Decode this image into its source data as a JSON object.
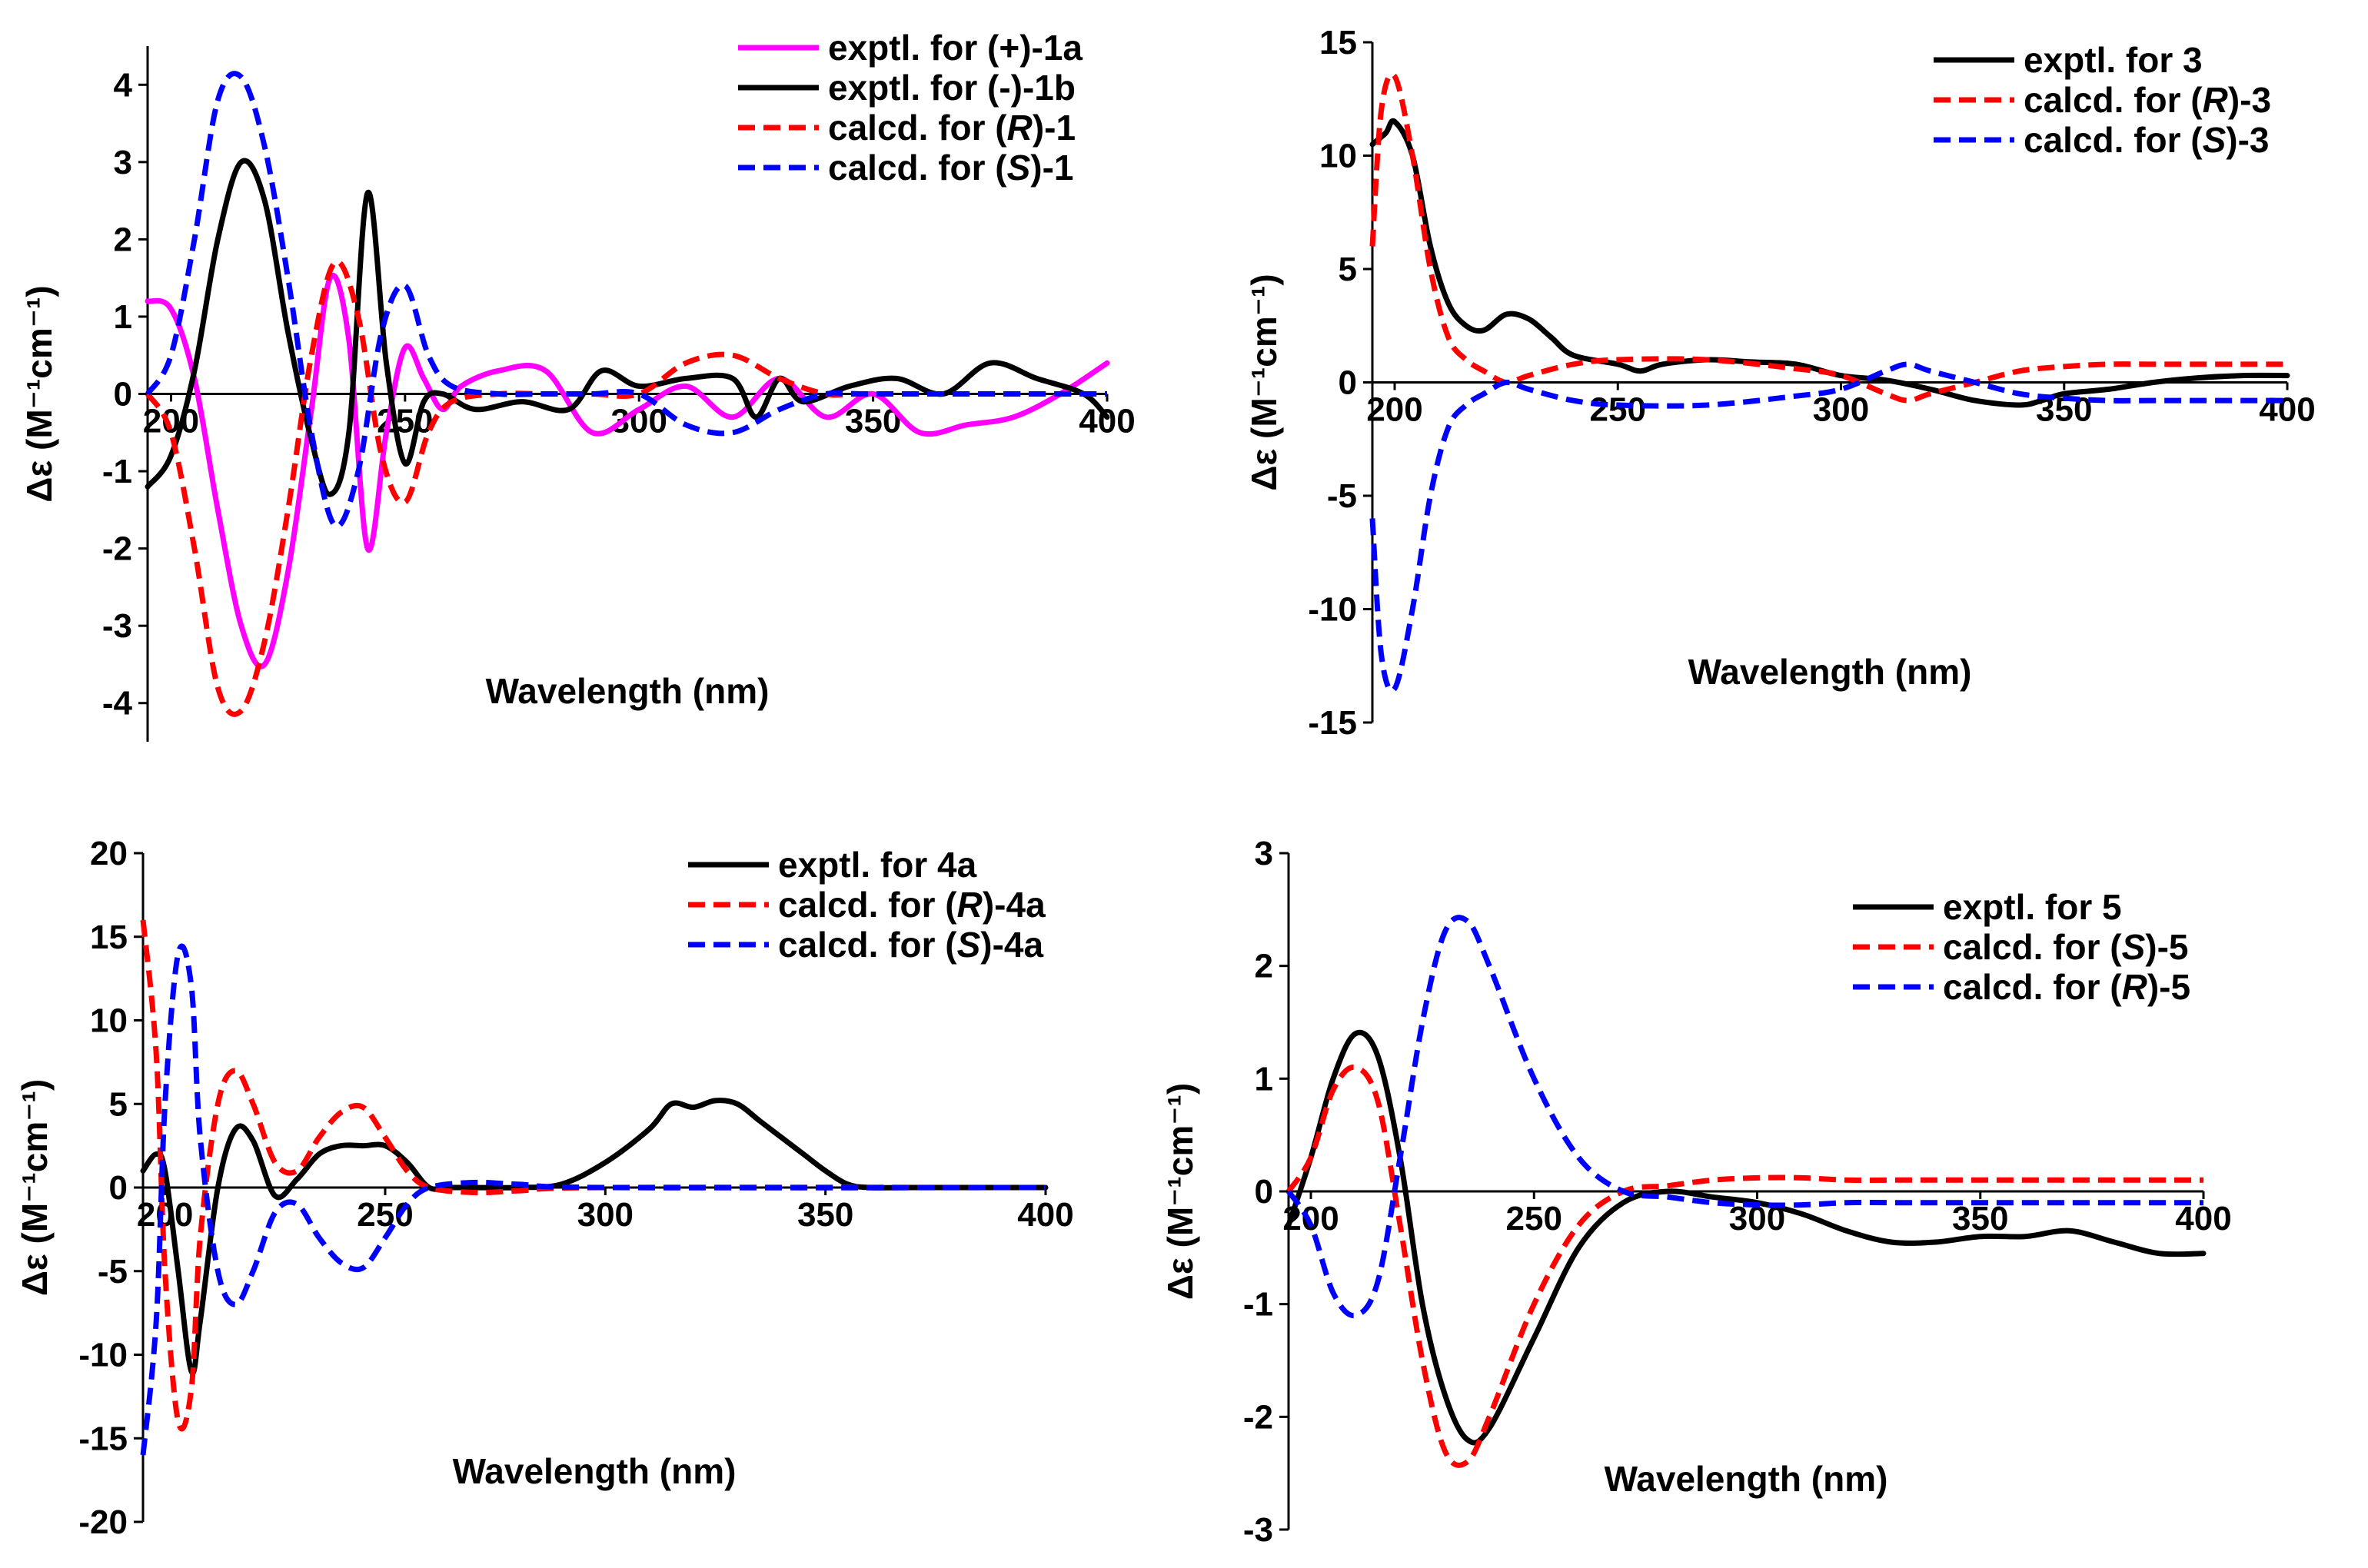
{
  "chart_data": [
    {
      "type": "line",
      "panel": "top-left",
      "xlabel": "Wavelength (nm)",
      "ylabel": "Δε (M⁻¹cm⁻¹)",
      "xlim": [
        195,
        400
      ],
      "ylim": [
        -4.5,
        4.5
      ],
      "xticks": [
        200,
        250,
        300,
        350,
        400
      ],
      "yticks": [
        -4,
        -3,
        -2,
        -1,
        0,
        1,
        2,
        3,
        4
      ],
      "legend_position": "top-right",
      "series": [
        {
          "name": "exptl. for (+)-1a",
          "name_pre": "exptl. for (+)-1a",
          "name_it": "",
          "name_post": "",
          "color": "#ff00ff",
          "dash": "solid",
          "x": [
            195,
            200,
            205,
            210,
            215,
            220,
            225,
            230,
            234,
            238,
            242,
            246,
            250,
            254,
            258,
            262,
            270,
            280,
            290,
            300,
            310,
            320,
            330,
            340,
            350,
            360,
            370,
            380,
            390,
            400
          ],
          "y": [
            1.2,
            1.1,
            0.2,
            -1.5,
            -3.0,
            -3.5,
            -2.3,
            -0.2,
            1.5,
            0.7,
            -2.0,
            -0.5,
            0.6,
            0.2,
            -0.2,
            0.1,
            0.3,
            0.3,
            -0.5,
            -0.2,
            0.1,
            -0.3,
            0.2,
            -0.3,
            0.0,
            -0.5,
            -0.4,
            -0.3,
            0.0,
            0.4
          ]
        },
        {
          "name": "exptl. for (-)-1b",
          "name_pre": "exptl. for (-)-1b",
          "name_it": "",
          "name_post": "",
          "color": "#000000",
          "dash": "solid",
          "x": [
            195,
            200,
            205,
            210,
            215,
            220,
            225,
            230,
            234,
            238,
            242,
            246,
            250,
            254,
            258,
            265,
            275,
            285,
            292,
            300,
            310,
            320,
            325,
            330,
            335,
            345,
            355,
            365,
            375,
            385,
            395,
            400
          ],
          "y": [
            -1.2,
            -0.8,
            0.3,
            2.0,
            3.0,
            2.5,
            0.8,
            -0.6,
            -1.3,
            -0.5,
            2.6,
            0.4,
            -0.9,
            -0.1,
            0.0,
            -0.2,
            -0.1,
            -0.2,
            0.3,
            0.1,
            0.2,
            0.2,
            -0.3,
            0.2,
            -0.1,
            0.1,
            0.2,
            0.0,
            0.4,
            0.2,
            0.0,
            -0.3
          ]
        },
        {
          "name": "calcd. for (R)-1",
          "name_pre": "calcd. for (",
          "name_it": "R",
          "name_post": ")-1",
          "color": "#ff0000",
          "dash": "dashed",
          "x": [
            195,
            200,
            205,
            210,
            215,
            220,
            225,
            230,
            235,
            240,
            245,
            250,
            255,
            260,
            270,
            280,
            290,
            300,
            310,
            320,
            330,
            340,
            350,
            400
          ],
          "y": [
            0.0,
            -0.5,
            -2.0,
            -3.8,
            -4.1,
            -3.2,
            -1.5,
            0.5,
            1.7,
            1.0,
            -0.8,
            -1.4,
            -0.5,
            -0.1,
            0.0,
            0.0,
            0.0,
            0.0,
            0.4,
            0.5,
            0.2,
            0.0,
            0.0,
            0.0
          ]
        },
        {
          "name": "calcd. for (S)-1",
          "name_pre": "calcd. for (",
          "name_it": "S",
          "name_post": ")-1",
          "color": "#0000ff",
          "dash": "dashed",
          "x": [
            195,
            200,
            205,
            210,
            215,
            220,
            225,
            230,
            235,
            240,
            245,
            250,
            255,
            260,
            270,
            280,
            290,
            300,
            310,
            320,
            330,
            340,
            350,
            400
          ],
          "y": [
            0.0,
            0.5,
            2.0,
            3.8,
            4.1,
            3.2,
            1.5,
            -0.5,
            -1.7,
            -1.0,
            0.8,
            1.4,
            0.5,
            0.1,
            0.0,
            0.0,
            0.0,
            0.0,
            -0.4,
            -0.5,
            -0.2,
            0.0,
            0.0,
            0.0
          ]
        }
      ]
    },
    {
      "type": "line",
      "panel": "top-right",
      "xlabel": "Wavelength (nm)",
      "ylabel": "Δε (M⁻¹cm⁻¹)",
      "xlim": [
        195,
        400
      ],
      "ylim": [
        -15,
        15
      ],
      "xticks": [
        200,
        250,
        300,
        350,
        400
      ],
      "yticks": [
        -15,
        -10,
        -5,
        0,
        5,
        10,
        15
      ],
      "legend_position": "top-right",
      "series": [
        {
          "name": "exptl. for 3",
          "name_pre": "exptl. for 3",
          "name_it": "",
          "name_post": "",
          "color": "#000000",
          "dash": "solid",
          "x": [
            195,
            198,
            200,
            204,
            208,
            212,
            216,
            220,
            225,
            230,
            235,
            240,
            250,
            255,
            260,
            270,
            280,
            290,
            300,
            310,
            320,
            330,
            340,
            345,
            350,
            360,
            370,
            380,
            390,
            400
          ],
          "y": [
            10.5,
            11.0,
            11.5,
            10.0,
            6.0,
            3.5,
            2.5,
            2.3,
            3.0,
            2.8,
            2.0,
            1.2,
            0.8,
            0.5,
            0.8,
            1.0,
            0.9,
            0.8,
            0.3,
            0.1,
            -0.3,
            -0.8,
            -1.0,
            -0.8,
            -0.5,
            -0.3,
            0.0,
            0.2,
            0.3,
            0.3
          ]
        },
        {
          "name": "calcd. for (R)-3",
          "name_pre": "calcd. for (",
          "name_it": "R",
          "name_post": ")-3",
          "color": "#ff0000",
          "dash": "dashed",
          "x": [
            195,
            197,
            200,
            204,
            208,
            212,
            216,
            220,
            225,
            230,
            240,
            250,
            270,
            290,
            300,
            310,
            315,
            320,
            330,
            340,
            350,
            360,
            370,
            380,
            400
          ],
          "y": [
            6.0,
            12.0,
            13.5,
            10.0,
            5.0,
            2.0,
            1.0,
            0.5,
            0.0,
            0.3,
            0.8,
            1.0,
            1.0,
            0.6,
            0.3,
            -0.5,
            -0.8,
            -0.5,
            0.0,
            0.5,
            0.7,
            0.8,
            0.8,
            0.8,
            0.8
          ]
        },
        {
          "name": "calcd. for (S)-3",
          "name_pre": "calcd. for (",
          "name_it": "S",
          "name_post": ")-3",
          "color": "#0000ff",
          "dash": "dashed",
          "x": [
            195,
            197,
            200,
            204,
            208,
            212,
            216,
            220,
            225,
            230,
            240,
            250,
            270,
            290,
            300,
            310,
            315,
            320,
            330,
            340,
            350,
            360,
            370,
            380,
            400
          ],
          "y": [
            -6.0,
            -12.0,
            -13.5,
            -10.0,
            -5.0,
            -2.0,
            -1.0,
            -0.5,
            0.0,
            -0.3,
            -0.8,
            -1.0,
            -1.0,
            -0.6,
            -0.3,
            0.5,
            0.8,
            0.5,
            0.0,
            -0.5,
            -0.7,
            -0.8,
            -0.8,
            -0.8,
            -0.8
          ]
        }
      ]
    },
    {
      "type": "line",
      "panel": "bottom-left",
      "xlabel": "Wavelength (nm)",
      "ylabel": "Δε (M⁻¹cm⁻¹)",
      "xlim": [
        195,
        400
      ],
      "ylim": [
        -20,
        20
      ],
      "xticks": [
        200,
        250,
        300,
        350,
        400
      ],
      "yticks": [
        -20,
        -15,
        -10,
        -5,
        0,
        5,
        10,
        15,
        20
      ],
      "legend_position": "top-right",
      "series": [
        {
          "name": "exptl. for 4a",
          "name_pre": "exptl. for 4a",
          "name_it": "",
          "name_post": "",
          "color": "#000000",
          "dash": "solid",
          "x": [
            195,
            198,
            200,
            203,
            206,
            208,
            212,
            216,
            220,
            225,
            230,
            235,
            240,
            245,
            250,
            255,
            260,
            265,
            270,
            280,
            290,
            300,
            310,
            315,
            320,
            325,
            330,
            335,
            340,
            345,
            350,
            355,
            360,
            370,
            400
          ],
          "y": [
            1.0,
            2.0,
            1.0,
            -5.0,
            -11.0,
            -8.0,
            0.0,
            3.5,
            2.8,
            -0.5,
            0.5,
            2.0,
            2.5,
            2.5,
            2.5,
            1.5,
            0.0,
            0.0,
            0.0,
            0.0,
            0.2,
            1.5,
            3.5,
            5.0,
            4.8,
            5.2,
            5.0,
            4.0,
            3.0,
            2.0,
            1.0,
            0.2,
            0.0,
            0.0,
            0.0
          ]
        },
        {
          "name": "calcd. for (R)-4a",
          "name_pre": "calcd. for (",
          "name_it": "R",
          "name_post": ")-4a",
          "color": "#ff0000",
          "dash": "dashed",
          "x": [
            195,
            198,
            200,
            203,
            206,
            208,
            212,
            216,
            220,
            225,
            230,
            235,
            240,
            245,
            250,
            255,
            260,
            270,
            280,
            300,
            400
          ],
          "y": [
            16.0,
            8.0,
            -5.0,
            -14.0,
            -12.0,
            -3.0,
            5.0,
            7.0,
            5.0,
            1.5,
            1.0,
            3.0,
            4.5,
            4.8,
            3.0,
            1.0,
            0.0,
            -0.3,
            -0.2,
            0.0,
            0.0
          ]
        },
        {
          "name": "calcd. for (S)-4a",
          "name_pre": "calcd. for (",
          "name_it": "S",
          "name_post": ")-4a",
          "color": "#0000ff",
          "dash": "dashed",
          "x": [
            195,
            198,
            200,
            203,
            206,
            208,
            212,
            216,
            220,
            225,
            230,
            235,
            240,
            245,
            250,
            255,
            260,
            270,
            280,
            300,
            400
          ],
          "y": [
            -16.0,
            -8.0,
            5.0,
            14.0,
            12.0,
            3.0,
            -5.0,
            -7.0,
            -5.0,
            -1.5,
            -1.0,
            -3.0,
            -4.5,
            -4.8,
            -3.0,
            -1.0,
            0.0,
            0.3,
            0.2,
            0.0,
            0.0
          ]
        }
      ]
    },
    {
      "type": "line",
      "panel": "bottom-right",
      "xlabel": "Wavelength (nm)",
      "ylabel": "Δε (M⁻¹cm⁻¹)",
      "xlim": [
        195,
        400
      ],
      "ylim": [
        -3,
        3
      ],
      "xticks": [
        200,
        250,
        300,
        350,
        400
      ],
      "yticks": [
        -3,
        -2,
        -1,
        0,
        1,
        2,
        3
      ],
      "legend_position": "top-right",
      "series": [
        {
          "name": "exptl. for 5",
          "name_pre": "exptl. for 5",
          "name_it": "",
          "name_post": "",
          "color": "#000000",
          "dash": "solid",
          "x": [
            195,
            200,
            205,
            210,
            215,
            220,
            225,
            230,
            235,
            240,
            250,
            260,
            270,
            280,
            290,
            300,
            310,
            320,
            330,
            340,
            350,
            360,
            370,
            380,
            390,
            400
          ],
          "y": [
            -0.3,
            0.3,
            1.0,
            1.4,
            1.2,
            0.3,
            -1.0,
            -1.8,
            -2.2,
            -2.1,
            -1.3,
            -0.5,
            -0.1,
            0.0,
            -0.05,
            -0.1,
            -0.2,
            -0.35,
            -0.45,
            -0.45,
            -0.4,
            -0.4,
            -0.35,
            -0.45,
            -0.55,
            -0.55
          ]
        },
        {
          "name": "calcd. for (S)-5",
          "name_pre": "calcd. for (",
          "name_it": "S",
          "name_post": ")-5",
          "color": "#ff0000",
          "dash": "dashed",
          "x": [
            195,
            200,
            205,
            210,
            215,
            220,
            225,
            230,
            235,
            240,
            250,
            260,
            270,
            280,
            290,
            300,
            310,
            320,
            330,
            340,
            350,
            360,
            400
          ],
          "y": [
            0.0,
            0.3,
            0.9,
            1.1,
            0.8,
            -0.3,
            -1.5,
            -2.3,
            -2.4,
            -2.0,
            -1.0,
            -0.3,
            0.0,
            0.05,
            0.1,
            0.12,
            0.12,
            0.1,
            0.1,
            0.1,
            0.1,
            0.1,
            0.1
          ]
        },
        {
          "name": "calcd. for (R)-5",
          "name_pre": "calcd. for (",
          "name_it": "R",
          "name_post": ")-5",
          "color": "#0000ff",
          "dash": "dashed",
          "x": [
            195,
            200,
            205,
            210,
            215,
            220,
            225,
            230,
            235,
            240,
            250,
            260,
            270,
            280,
            290,
            300,
            310,
            320,
            330,
            340,
            350,
            360,
            400
          ],
          "y": [
            0.0,
            -0.3,
            -0.9,
            -1.1,
            -0.8,
            0.3,
            1.5,
            2.3,
            2.4,
            2.0,
            1.0,
            0.3,
            0.0,
            -0.05,
            -0.1,
            -0.12,
            -0.12,
            -0.1,
            -0.1,
            -0.1,
            -0.1,
            -0.1,
            -0.1
          ]
        }
      ]
    }
  ]
}
